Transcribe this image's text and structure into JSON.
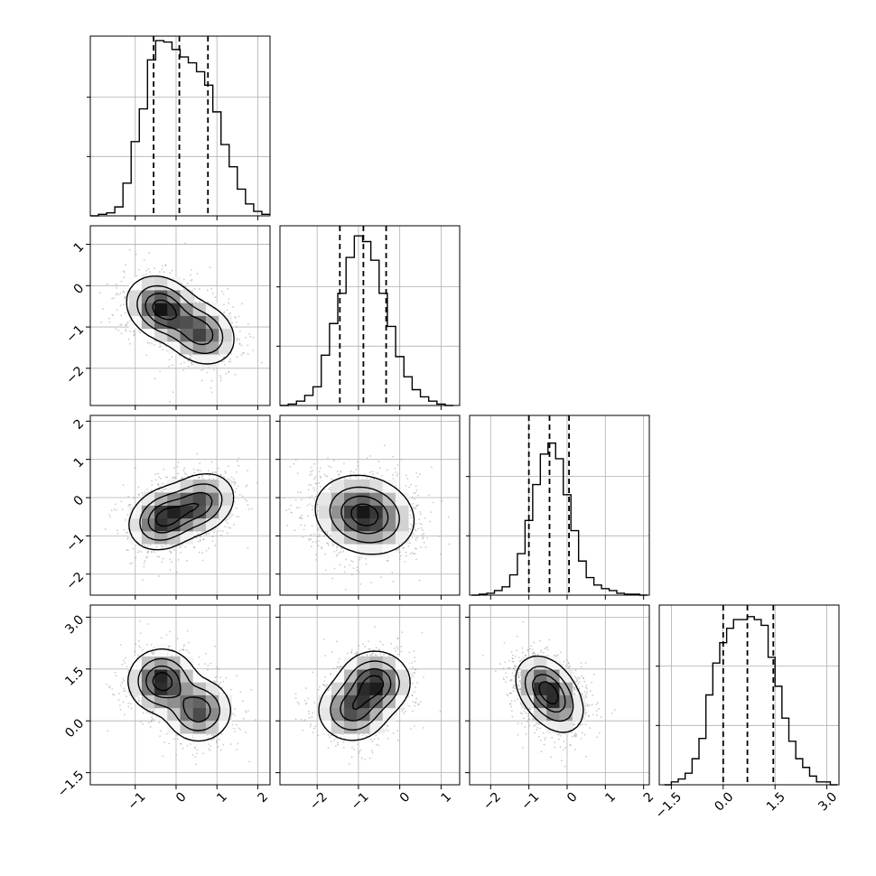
{
  "chart_data": {
    "type": "corner",
    "grid": true,
    "parameters": [
      {
        "range": [
          -2.1,
          2.3
        ],
        "ticks": [
          -1,
          0,
          1,
          2
        ],
        "tick_labels": [
          "−1",
          "0",
          "1",
          "2"
        ],
        "mean": 0.1,
        "sd": 0.66,
        "quantiles": [
          -0.55,
          0.08,
          0.78
        ],
        "hist_y_range": [
          0,
          1.21
        ],
        "hist_x": [
          -2.0,
          -1.8,
          -1.6,
          -1.4,
          -1.2,
          -1.0,
          -0.8,
          -0.6,
          -0.4,
          -0.2,
          0.0,
          0.2,
          0.4,
          0.6,
          0.8,
          1.0,
          1.2,
          1.4,
          1.6,
          1.8,
          2.0,
          2.2
        ],
        "hist_values": [
          0.0,
          0.01,
          0.02,
          0.06,
          0.22,
          0.5,
          0.72,
          1.05,
          1.18,
          1.17,
          1.12,
          1.07,
          1.03,
          0.97,
          0.88,
          0.7,
          0.48,
          0.33,
          0.18,
          0.08,
          0.03,
          0.01
        ]
      },
      {
        "range": [
          -2.9,
          1.45
        ],
        "ticks": [
          -2,
          -1,
          0,
          1
        ],
        "tick_labels": [
          "−2",
          "−1",
          "0",
          "1"
        ],
        "mean": -0.85,
        "sd": 0.62,
        "quantiles": [
          -1.45,
          -0.88,
          -0.33
        ],
        "hist_y_range": [
          0,
          1.25
        ],
        "hist_x": [
          -2.8,
          -2.6,
          -2.4,
          -2.2,
          -2.0,
          -1.8,
          -1.6,
          -1.4,
          -1.2,
          -1.0,
          -0.8,
          -0.6,
          -0.4,
          -0.2,
          0.0,
          0.2,
          0.4,
          0.6,
          0.8,
          1.0,
          1.2
        ],
        "hist_values": [
          0.0,
          0.01,
          0.03,
          0.07,
          0.13,
          0.35,
          0.57,
          0.78,
          1.03,
          1.18,
          1.14,
          1.01,
          0.78,
          0.55,
          0.34,
          0.2,
          0.11,
          0.06,
          0.03,
          0.01,
          0.0
        ]
      },
      {
        "range": [
          -2.55,
          2.15
        ],
        "ticks": [
          -2,
          -1,
          0,
          1,
          2
        ],
        "tick_labels": [
          "−2",
          "−1",
          "0",
          "1",
          "2"
        ],
        "mean": -0.45,
        "sd": 0.5,
        "quantiles": [
          -1.0,
          -0.46,
          0.05
        ],
        "hist_y_range": [
          0,
          1.95
        ],
        "hist_x": [
          -2.4,
          -2.2,
          -2.0,
          -1.8,
          -1.6,
          -1.4,
          -1.2,
          -1.0,
          -0.8,
          -0.6,
          -0.4,
          -0.2,
          0.0,
          0.2,
          0.4,
          0.6,
          0.8,
          1.0,
          1.2,
          1.4,
          1.6,
          1.8,
          2.0
        ],
        "hist_values": [
          0.0,
          0.01,
          0.02,
          0.05,
          0.09,
          0.22,
          0.45,
          0.81,
          1.2,
          1.53,
          1.65,
          1.48,
          1.09,
          0.7,
          0.37,
          0.19,
          0.11,
          0.07,
          0.05,
          0.02,
          0.01,
          0.01,
          0.0
        ]
      },
      {
        "range": [
          -1.85,
          3.35
        ],
        "ticks": [
          -1.5,
          0.0,
          1.5,
          3.0
        ],
        "tick_labels": [
          "−1.5",
          "0.0",
          "1.5",
          "3.0"
        ],
        "mean": 0.75,
        "sd": 0.62,
        "quantiles": [
          0.0,
          0.7,
          1.45
        ],
        "hist_y_range": [
          0,
          0.62
        ],
        "hist_x": [
          -1.6,
          -1.4,
          -1.2,
          -1.0,
          -0.8,
          -0.6,
          -0.4,
          -0.2,
          0.0,
          0.2,
          0.4,
          0.6,
          0.8,
          1.0,
          1.2,
          1.4,
          1.6,
          1.8,
          2.0,
          2.2,
          2.4,
          2.6,
          2.8,
          3.0,
          3.2
        ],
        "hist_values": [
          0.0,
          0.01,
          0.02,
          0.04,
          0.09,
          0.16,
          0.31,
          0.42,
          0.49,
          0.54,
          0.57,
          0.57,
          0.58,
          0.57,
          0.55,
          0.44,
          0.34,
          0.23,
          0.15,
          0.09,
          0.06,
          0.03,
          0.01,
          0.01,
          0.0
        ]
      }
    ],
    "pairs": [
      {
        "row": 1,
        "col": 0,
        "modes": [
          {
            "x": -0.35,
            "y": -0.55,
            "w": 0.55
          },
          {
            "x": 0.6,
            "y": -1.15,
            "w": 0.45
          }
        ],
        "spread": [
          0.42,
          0.38
        ],
        "rho": -0.2
      },
      {
        "row": 2,
        "col": 0,
        "modes": [
          {
            "x": -0.3,
            "y": -0.55,
            "w": 0.55
          },
          {
            "x": 0.6,
            "y": -0.15,
            "w": 0.45
          }
        ],
        "spread": [
          0.42,
          0.4
        ],
        "rho": 0.2
      },
      {
        "row": 2,
        "col": 1,
        "modes": [
          {
            "x": -0.85,
            "y": -0.45,
            "w": 1.0
          }
        ],
        "spread": [
          0.58,
          0.5
        ],
        "rho": -0.15
      },
      {
        "row": 3,
        "col": 0,
        "modes": [
          {
            "x": -0.35,
            "y": 1.15,
            "w": 0.55
          },
          {
            "x": 0.55,
            "y": 0.3,
            "w": 0.45
          }
        ],
        "spread": [
          0.4,
          0.45
        ],
        "rho": 0.0
      },
      {
        "row": 3,
        "col": 1,
        "modes": [
          {
            "x": -1.15,
            "y": 0.3,
            "w": 0.45
          },
          {
            "x": -0.6,
            "y": 1.1,
            "w": 0.55
          }
        ],
        "spread": [
          0.42,
          0.45
        ],
        "rho": 0.0
      },
      {
        "row": 3,
        "col": 2,
        "modes": [
          {
            "x": -0.6,
            "y": 1.0,
            "w": 0.6
          },
          {
            "x": -0.25,
            "y": 0.45,
            "w": 0.4
          }
        ],
        "spread": [
          0.38,
          0.45
        ],
        "rho": -0.25
      }
    ],
    "scatter_points_per_panel": 1400,
    "contour_levels": [
      0.12,
      0.35,
      0.62,
      0.85
    ]
  }
}
